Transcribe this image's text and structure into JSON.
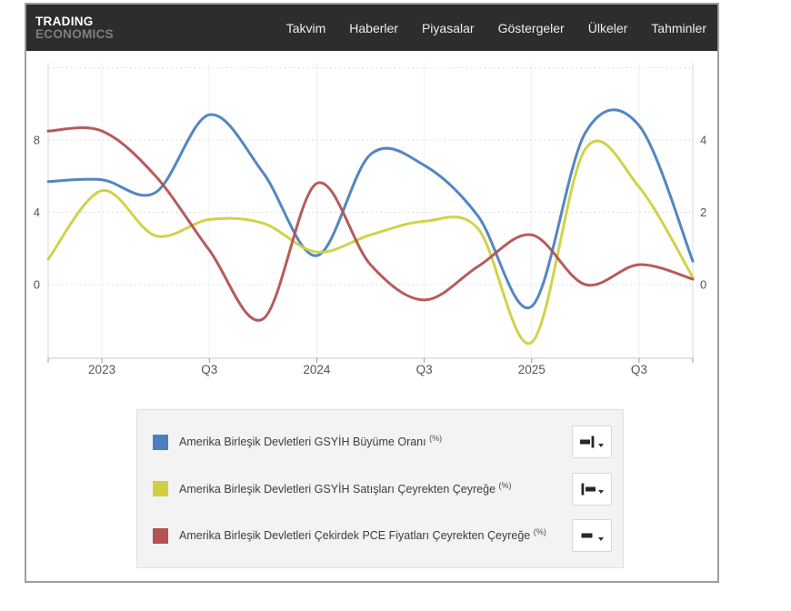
{
  "header": {
    "logo_line1": "TRADING",
    "logo_line2": "ECONOMICS",
    "nav": [
      "Takvim",
      "Haberler",
      "Piyasalar",
      "Göstergeler",
      "Ülkeler",
      "Tahminler"
    ]
  },
  "chart_data": {
    "type": "line",
    "title": "",
    "grid": "dashed-horizontal",
    "legend_position": "bottom",
    "x_quarters": [
      "2022 Q4",
      "2023 Q1",
      "2023 Q2",
      "2023 Q3",
      "2023 Q4",
      "2024 Q1",
      "2024 Q2",
      "2024 Q3",
      "2024 Q4",
      "2025 Q1",
      "2025 Q2",
      "2025 Q3",
      "2025 Q4"
    ],
    "x_tick_labels": [
      {
        "position": 1,
        "label": "2023"
      },
      {
        "position": 3,
        "label": "Q3"
      },
      {
        "position": 5,
        "label": "2024"
      },
      {
        "position": 7,
        "label": "Q3"
      },
      {
        "position": 9,
        "label": "2025"
      },
      {
        "position": 11,
        "label": "Q3"
      }
    ],
    "left_axis": {
      "tick_values": [
        8,
        4,
        0
      ],
      "range": [
        -4,
        12
      ],
      "gridline_values": [
        12,
        8,
        4,
        0
      ]
    },
    "right_axis": {
      "tick_values": [
        4,
        2,
        0
      ],
      "range": [
        -2,
        6
      ]
    },
    "series": [
      {
        "name": "Amerika Birleşik Devletleri GSYİH Büyüme Oranı (%)",
        "axis": "right",
        "color": "#4a80c0",
        "values": [
          2.85,
          2.9,
          2.55,
          4.7,
          3.1,
          0.8,
          3.6,
          3.3,
          1.9,
          -0.6,
          4.2,
          4.4,
          0.65
        ]
      },
      {
        "name": "Amerika Birleşik Devletleri GSYİH Satışları Çeyrekten Çeyreğe (%)",
        "axis": "left",
        "color": "#cfd03f",
        "values": [
          1.4,
          5.2,
          2.7,
          3.6,
          3.4,
          1.8,
          2.75,
          3.5,
          3.1,
          -3.2,
          7.5,
          5.4,
          0.4
        ]
      },
      {
        "name": "Amerika Birleşik Devletleri Çekirdek PCE Fiyatları Çeyrekten Çeyreğe (%)",
        "axis": "left",
        "color": "#b25351",
        "values": [
          8.5,
          8.5,
          6.0,
          1.9,
          -1.9,
          5.6,
          1.1,
          -0.85,
          1.0,
          2.75,
          0.0,
          1.1,
          0.3
        ]
      }
    ]
  },
  "legend": {
    "items": [
      {
        "label": "Amerika Birleşik Devletleri GSYİH Büyüme Oranı",
        "unit": "(%)",
        "color": "#4a80c0",
        "axis_icon": "axis-right-align-icon"
      },
      {
        "label": "Amerika Birleşik Devletleri GSYİH Satışları Çeyrekten Çeyreğe",
        "unit": "(%)",
        "color": "#cfd03f",
        "axis_icon": "axis-left-align-icon"
      },
      {
        "label": "Amerika Birleşik Devletleri Çekirdek PCE Fiyatları Çeyrekten Çeyreğe",
        "unit": "(%)",
        "color": "#b25351",
        "axis_icon": "axis-none-icon"
      }
    ],
    "dropdown_icon": "caret-down-icon"
  }
}
